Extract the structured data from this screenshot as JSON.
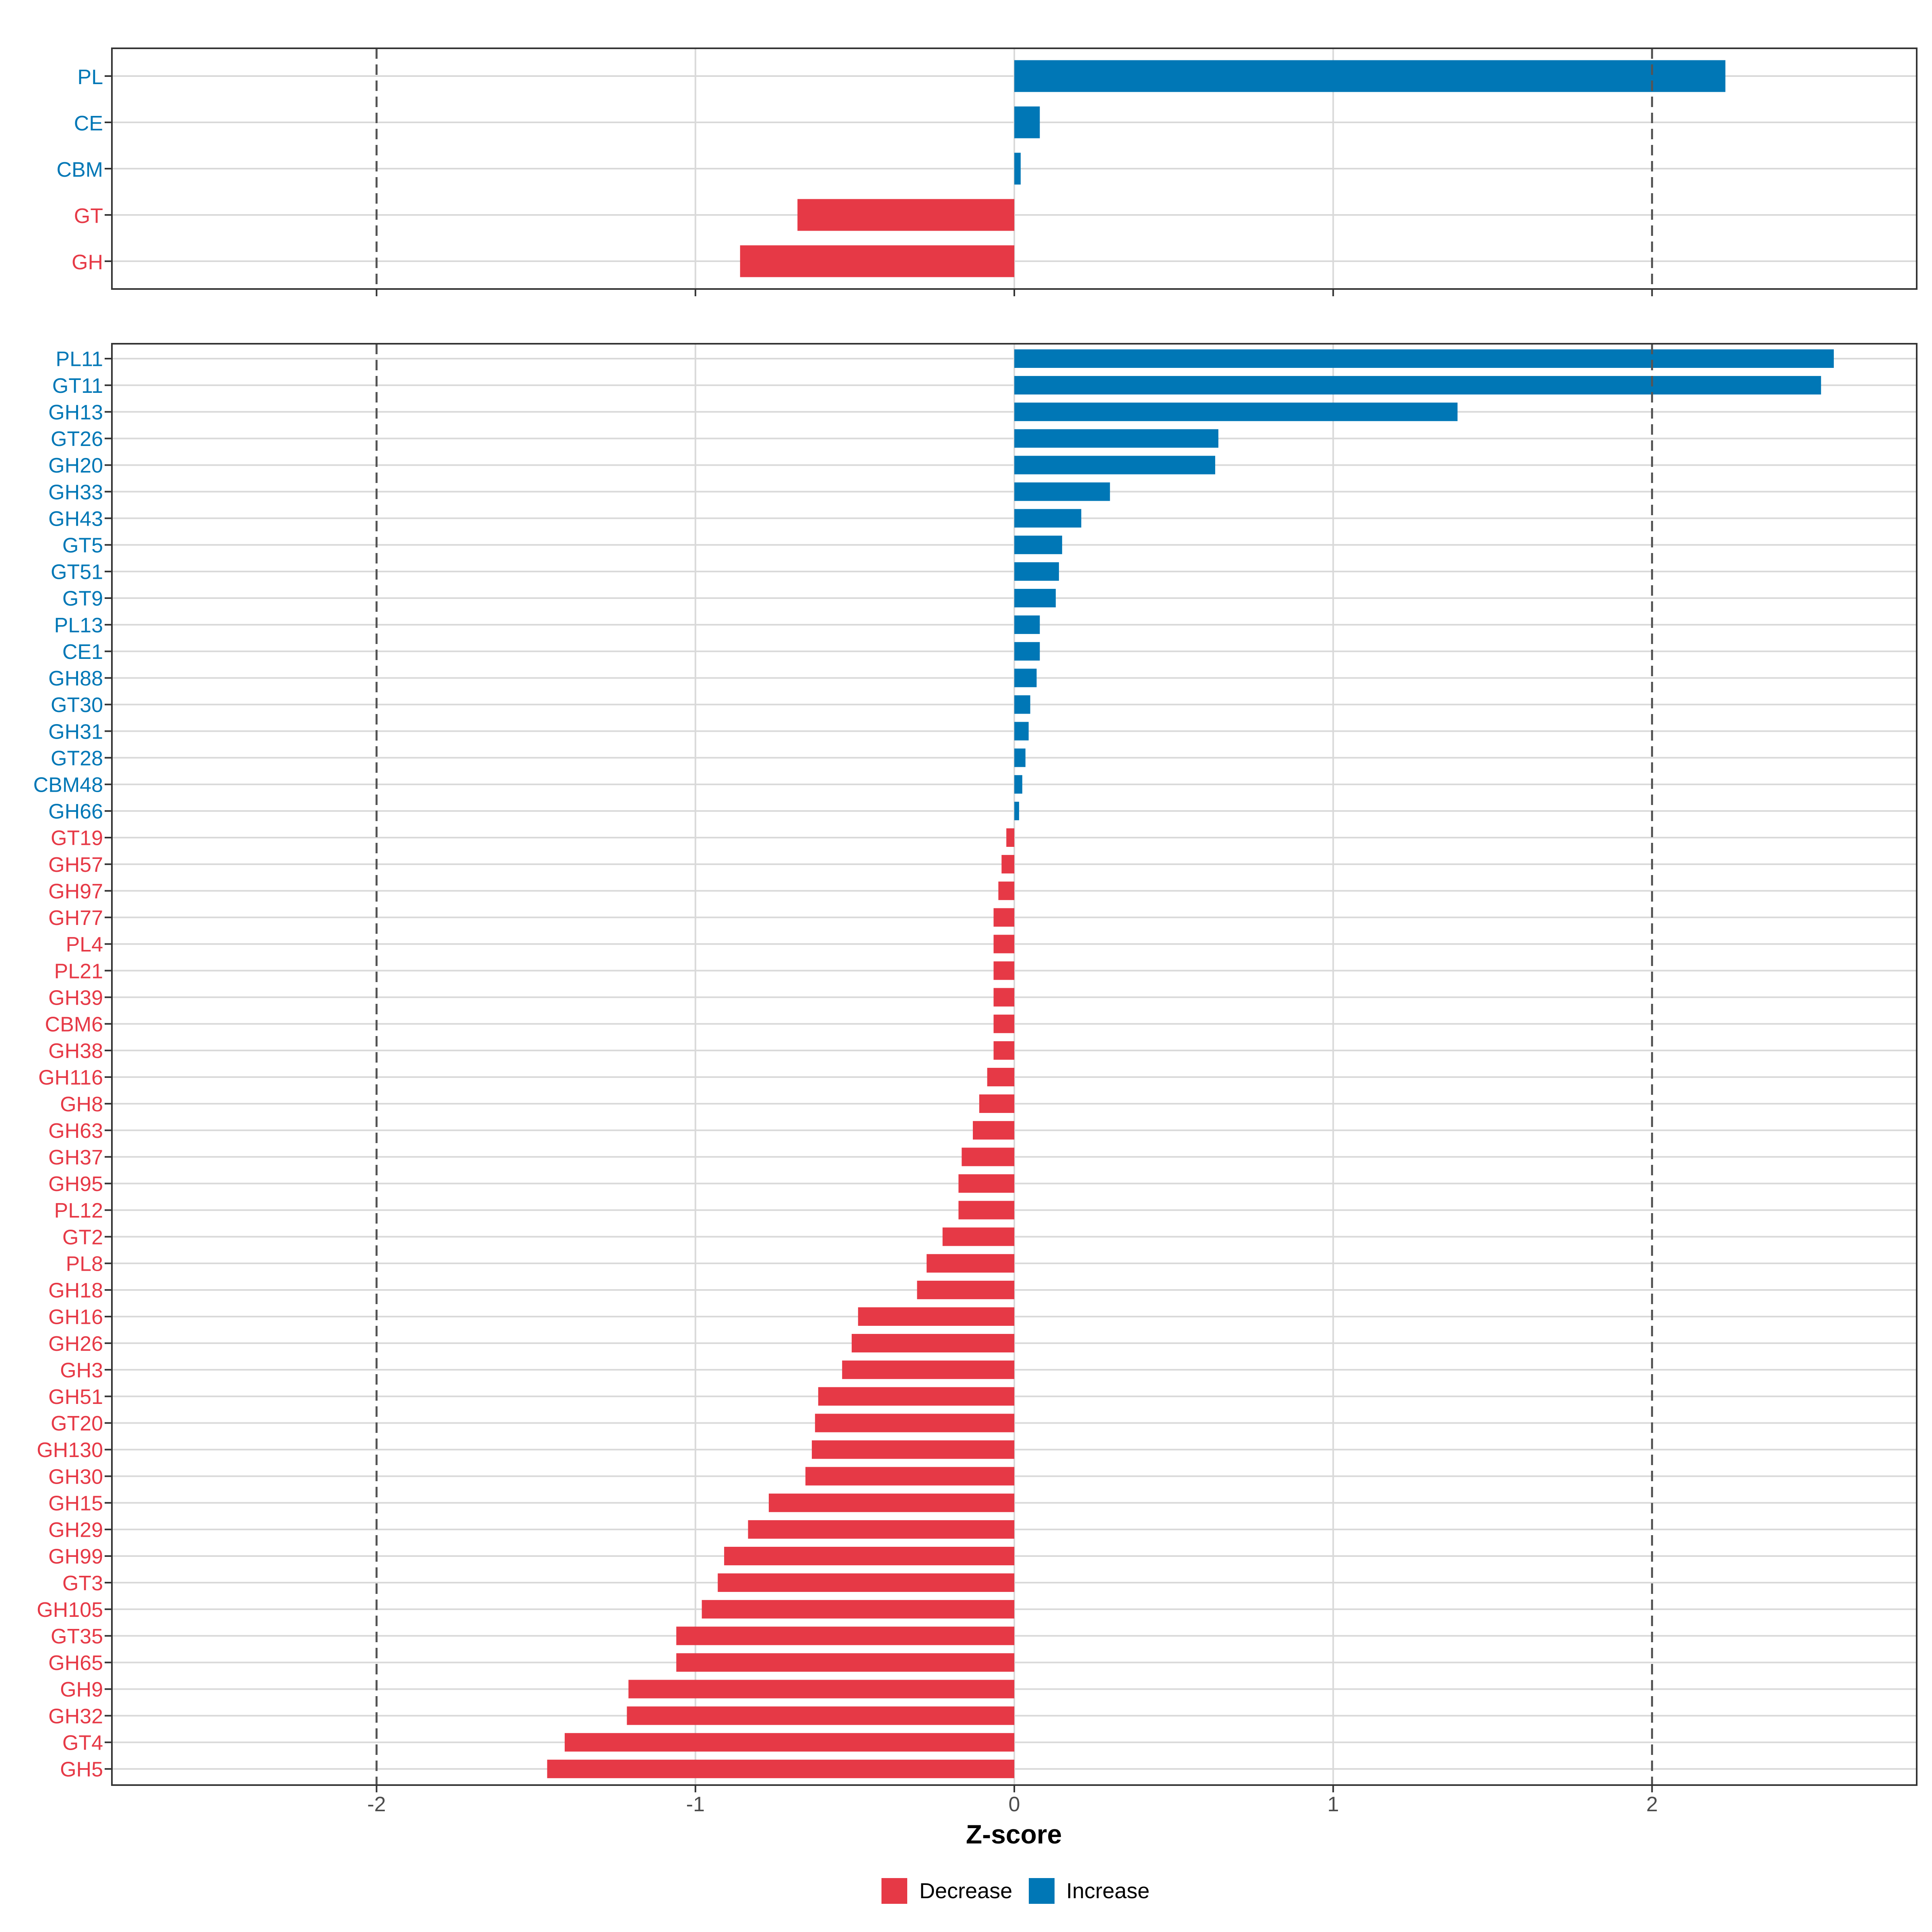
{
  "chart_data": [
    {
      "type": "bar",
      "orientation": "horizontal",
      "panel": "top",
      "categories": [
        "PL",
        "CE",
        "CBM",
        "GT",
        "GH"
      ],
      "values": [
        2.23,
        0.08,
        0.02,
        -0.68,
        -0.86
      ],
      "xlim": [
        -2.83,
        2.83
      ],
      "reference_lines": [
        -2,
        2
      ]
    },
    {
      "type": "bar",
      "orientation": "horizontal",
      "panel": "bottom",
      "categories": [
        "PL11",
        "GT11",
        "GH13",
        "GT26",
        "GH20",
        "GH33",
        "GH43",
        "GT5",
        "GT51",
        "GT9",
        "PL13",
        "CE1",
        "GH88",
        "GT30",
        "GH31",
        "GT28",
        "CBM48",
        "GH66",
        "GT19",
        "GH57",
        "GH97",
        "GH77",
        "PL4",
        "PL21",
        "GH39",
        "CBM6",
        "GH38",
        "GH116",
        "GH8",
        "GH63",
        "GH37",
        "GH95",
        "PL12",
        "GT2",
        "PL8",
        "GH18",
        "GH16",
        "GH26",
        "GH3",
        "GH51",
        "GT20",
        "GH130",
        "GH30",
        "GH15",
        "GH29",
        "GH99",
        "GT3",
        "GH105",
        "GT35",
        "GH65",
        "GH9",
        "GH32",
        "GT4",
        "GH5"
      ],
      "values": [
        2.57,
        2.53,
        1.39,
        0.64,
        0.63,
        0.3,
        0.21,
        0.15,
        0.14,
        0.13,
        0.08,
        0.08,
        0.07,
        0.05,
        0.045,
        0.035,
        0.025,
        0.015,
        -0.025,
        -0.04,
        -0.05,
        -0.065,
        -0.065,
        -0.065,
        -0.065,
        -0.065,
        -0.065,
        -0.085,
        -0.11,
        -0.13,
        -0.165,
        -0.175,
        -0.175,
        -0.225,
        -0.275,
        -0.305,
        -0.49,
        -0.51,
        -0.54,
        -0.615,
        -0.625,
        -0.635,
        -0.655,
        -0.77,
        -0.835,
        -0.91,
        -0.93,
        -0.98,
        -1.06,
        -1.06,
        -1.21,
        -1.215,
        -1.41,
        -1.465
      ],
      "xlim": [
        -2.83,
        2.83
      ],
      "xticks": [
        -2,
        -1,
        0,
        1,
        2
      ],
      "xtick_labels": [
        "-2",
        "-1",
        "0",
        "1",
        "2"
      ],
      "xlabel": "Z-score",
      "reference_lines": [
        -2,
        2
      ]
    }
  ],
  "legend": {
    "placement": "bottom",
    "entries": [
      {
        "label": "Decrease",
        "color": "#E63946"
      },
      {
        "label": "Increase",
        "color": "#0077B6"
      }
    ]
  },
  "colors": {
    "decrease": "#E63946",
    "increase": "#0077B6",
    "grid": "#d9d9d9",
    "refline": "#555555",
    "frame": "#333333"
  }
}
